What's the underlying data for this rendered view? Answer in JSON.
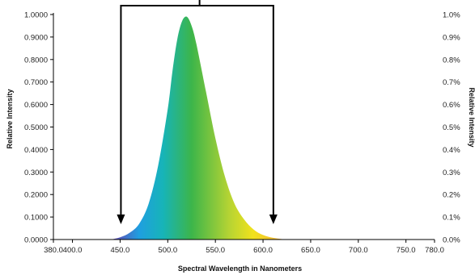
{
  "chart_data": {
    "type": "area",
    "title": "",
    "xlabel": "Spectral Wavelength in Nanometers",
    "ylabel": "Relative Intensity",
    "ylabel_right": "Relative Intensity",
    "xlim": [
      380,
      780
    ],
    "ylim": [
      0,
      1.0
    ],
    "x_ticks": [
      "380.0",
      "400.0",
      "450.0",
      "500.0",
      "550.0",
      "600.0",
      "650.0",
      "700.0",
      "750.0",
      "780.0"
    ],
    "x_tick_values": [
      380,
      400,
      450,
      500,
      550,
      600,
      650,
      700,
      750,
      780
    ],
    "y_ticks_left": [
      "0.0000",
      "0.1000",
      "0.2000",
      "0.3000",
      "0.4000",
      "0.5000",
      "0.6000",
      "0.7000",
      "0.8000",
      "0.9000",
      "1.0000"
    ],
    "y_ticks_right": [
      "0.0%",
      "0.1%",
      "0.2%",
      "0.3%",
      "0.4%",
      "0.5%",
      "0.6%",
      "0.7%",
      "0.8%",
      "0.9%",
      "1.0%"
    ],
    "grid": false,
    "legend": "none",
    "series": [
      {
        "x": [
          440,
          450,
          460,
          470,
          480,
          490,
          500,
          505,
          510,
          515,
          520,
          525,
          530,
          540,
          550,
          560,
          570,
          580,
          590,
          600,
          610,
          620,
          630
        ],
        "values": [
          0.0,
          0.01,
          0.03,
          0.07,
          0.16,
          0.33,
          0.58,
          0.75,
          0.89,
          0.97,
          0.99,
          0.95,
          0.87,
          0.66,
          0.45,
          0.28,
          0.16,
          0.09,
          0.045,
          0.02,
          0.008,
          0.002,
          0.0
        ]
      }
    ],
    "annotations": {
      "bracket_left_x": 450,
      "bracket_right_x": 610,
      "description_arrows": "down"
    },
    "colors": {
      "violet": "#6a3fb0",
      "blue": "#1f9fe0",
      "cyan": "#17b4b8",
      "green": "#3cb54a",
      "yellow_green": "#b7d433",
      "yellow": "#f1e21c",
      "orange": "#f4b23a",
      "axis": "#000000"
    }
  }
}
